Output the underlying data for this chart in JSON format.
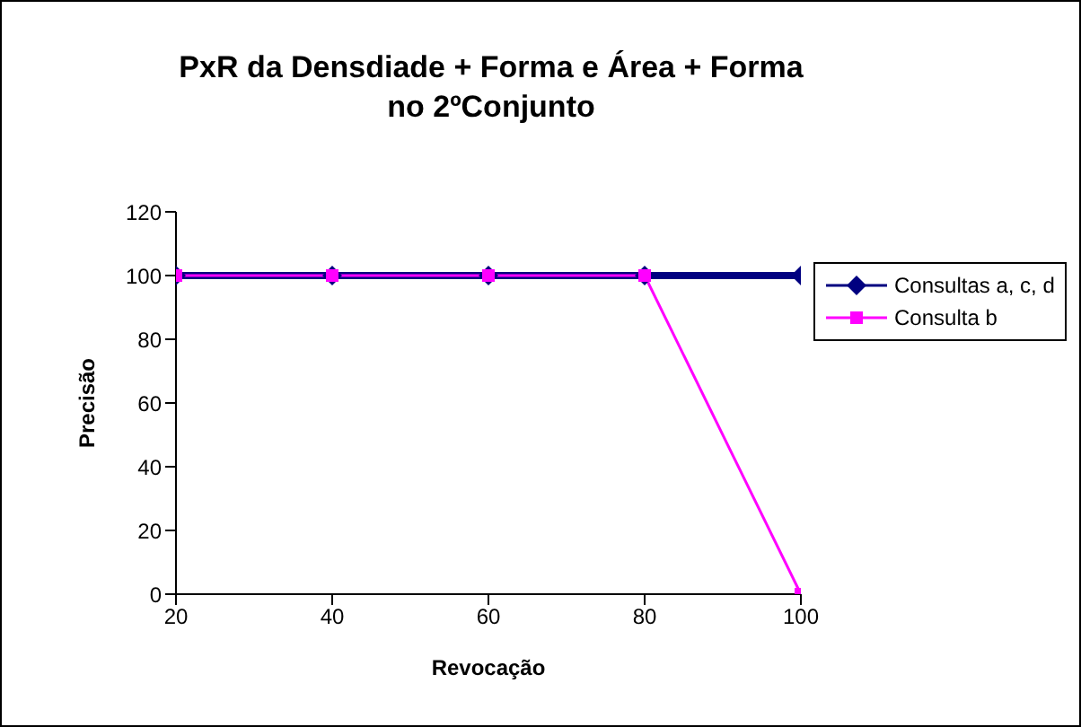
{
  "chart_data": {
    "type": "line",
    "title": "PxR da Densdiade + Forma e Área + Forma\nno 2ºConjunto",
    "xlabel": "Revocação",
    "ylabel": "Precisão",
    "x": [
      20,
      40,
      60,
      80,
      100
    ],
    "series": [
      {
        "name": "Consultas a, c, d",
        "color": "#000080",
        "marker": "diamond",
        "values": [
          100,
          100,
          100,
          100,
          100
        ]
      },
      {
        "name": "Consulta b",
        "color": "#ff00ff",
        "marker": "square",
        "values": [
          100,
          100,
          100,
          100,
          0
        ]
      }
    ],
    "xlim": [
      20,
      100
    ],
    "xticks": [
      20,
      40,
      60,
      80,
      100
    ],
    "ylim": [
      0,
      120
    ],
    "yticks": [
      0,
      20,
      40,
      60,
      80,
      100,
      120
    ],
    "grid": false,
    "legend": "right"
  }
}
